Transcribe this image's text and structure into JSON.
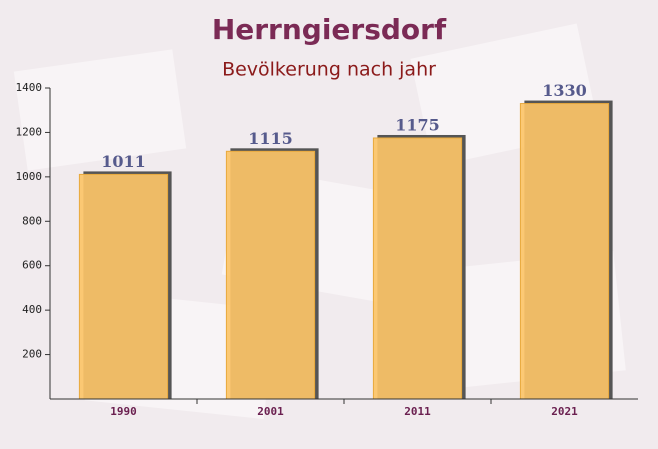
{
  "chart_data": {
    "type": "bar",
    "title": "Herrngiersdorf",
    "subtitle": "Bevölkerung nach jahr",
    "categories": [
      "1990",
      "2001",
      "2011",
      "2021"
    ],
    "values": [
      1011,
      1115,
      1175,
      1330
    ],
    "color": "#fcc468",
    "ylim": [
      0,
      1400
    ],
    "yticks": [
      200,
      400,
      600,
      800,
      1000,
      1200,
      1400
    ],
    "grid": false
  }
}
